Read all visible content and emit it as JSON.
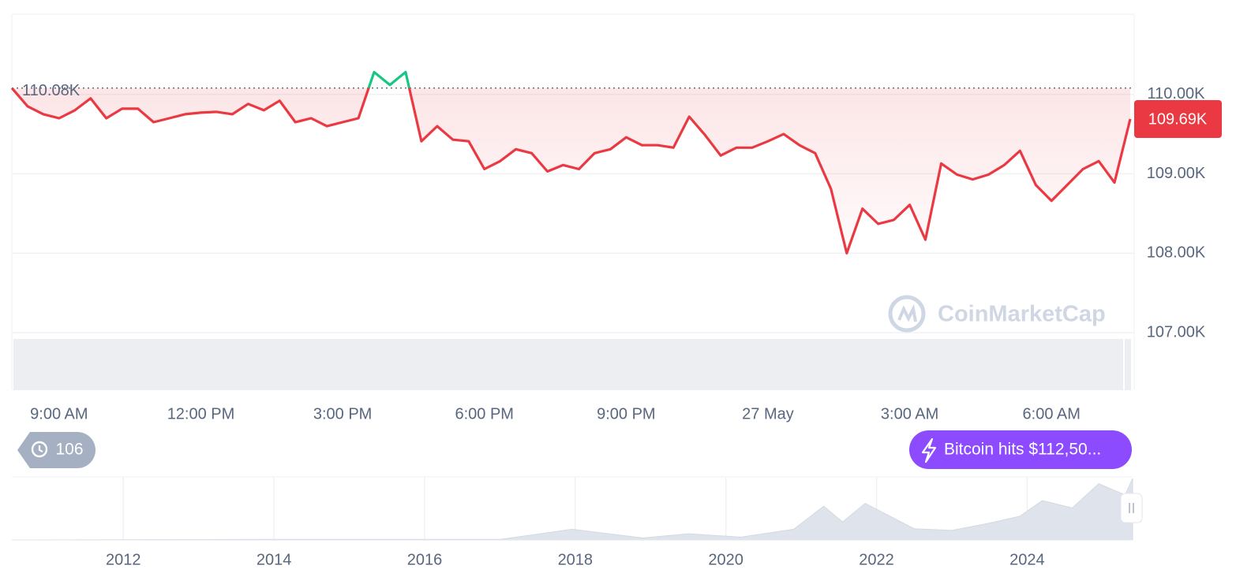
{
  "chart_data": [
    {
      "type": "line",
      "categories": [
        null,
        null,
        null,
        "9:00 AM",
        null,
        null,
        null,
        null,
        null,
        null,
        null,
        null,
        "12:00 PM",
        null,
        null,
        null,
        null,
        null,
        null,
        null,
        null,
        "3:00 PM",
        null,
        null,
        null,
        null,
        null,
        null,
        null,
        null,
        "6:00 PM",
        null,
        null,
        null,
        null,
        null,
        null,
        null,
        null,
        "9:00 PM",
        null,
        null,
        null,
        null,
        null,
        null,
        null,
        null,
        "27 May",
        null,
        null,
        null,
        null,
        null,
        null,
        null,
        null,
        "3:00 AM",
        null,
        null,
        null,
        null,
        null,
        null,
        null,
        null,
        "6:00 AM",
        null,
        null,
        null,
        null,
        null
      ],
      "values": [
        110080,
        109850,
        109750,
        109700,
        109800,
        109950,
        109700,
        109820,
        109820,
        109650,
        109700,
        109750,
        109770,
        109780,
        109750,
        109880,
        109800,
        109920,
        109650,
        109700,
        109600,
        109650,
        109700,
        110280,
        110120,
        110280,
        109410,
        109600,
        109430,
        109410,
        109060,
        109160,
        109310,
        109260,
        109030,
        109110,
        109060,
        109260,
        109310,
        109460,
        109360,
        109360,
        109330,
        109720,
        109490,
        109230,
        109330,
        109330,
        109410,
        109500,
        109360,
        109260,
        108810,
        108000,
        108560,
        108370,
        108420,
        108610,
        108170,
        109130,
        108990,
        108930,
        108990,
        109110,
        109290,
        108860,
        108660,
        108860,
        109060,
        109160,
        108890,
        109690
      ],
      "color_up": "#16c784",
      "color_down": "#ea3943",
      "ylim": [
        107000,
        111010
      ],
      "yticks": [
        {
          "value": 110000,
          "label": "110.00K"
        },
        {
          "value": 109000,
          "label": "109.00K"
        },
        {
          "value": 108000,
          "label": "108.00K"
        },
        {
          "value": 107000,
          "label": "107.00K"
        }
      ],
      "grid": true,
      "reference": {
        "value": 110080,
        "label": "110.08K"
      },
      "current_price": {
        "value": 109690,
        "label": "109.69K"
      },
      "history_badge": "106",
      "news_badge": "Bitcoin hits $112,50...",
      "watermark": "CoinMarketCap"
    },
    {
      "type": "area",
      "x": [
        2010.52,
        2013.9,
        2017.0,
        2017.96,
        2018.9,
        2019.5,
        2020.2,
        2020.9,
        2021.3,
        2021.55,
        2021.85,
        2022.5,
        2023.0,
        2023.5,
        2023.9,
        2024.2,
        2024.6,
        2024.95,
        2025.3,
        2025.4
      ],
      "values": [
        0,
        1000,
        1000,
        19000,
        3500,
        11000,
        5000,
        19000,
        60000,
        32000,
        65000,
        20000,
        17000,
        30000,
        42000,
        70000,
        57000,
        100000,
        80000,
        109000
      ],
      "color": "#dfe4ec",
      "xlim": [
        2010.52,
        2025.4
      ],
      "xticks": [
        2012,
        2014,
        2016,
        2018,
        2020,
        2022,
        2024
      ],
      "ylim": [
        0,
        112000
      ]
    }
  ]
}
